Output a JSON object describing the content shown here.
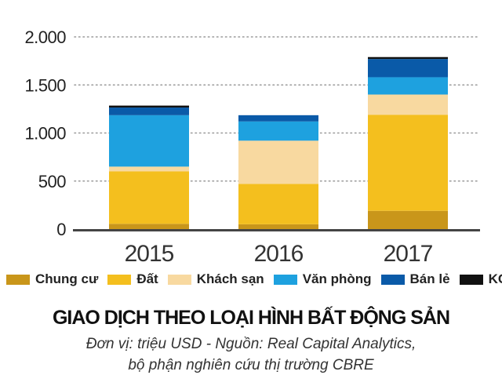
{
  "chart_data": {
    "type": "bar",
    "stacked": true,
    "title": "GIAO DỊCH THEO LOẠI HÌNH BẤT ĐỘNG SẢN",
    "subtitle_line1": "Đơn vị: triệu USD - Nguồn: Real Capital Analytics,",
    "subtitle_line2": "bộ phận nghiên cứu thị trường CBRE",
    "categories": [
      "2015",
      "2016",
      "2017"
    ],
    "ylim": [
      0,
      2000
    ],
    "yticks": [
      0,
      500,
      1000,
      1500,
      2000
    ],
    "ytick_labels": [
      "0",
      "500",
      "1.000",
      "1.500",
      "2.000"
    ],
    "grid": true,
    "legend_position": "bottom",
    "series": [
      {
        "name": "Chung cư",
        "color": "#C9961A",
        "values": [
          55,
          50,
          190
        ]
      },
      {
        "name": "Đất",
        "color": "#F4BF1E",
        "values": [
          545,
          420,
          1000
        ]
      },
      {
        "name": "Khách sạn",
        "color": "#F8D9A0",
        "values": [
          50,
          450,
          210
        ]
      },
      {
        "name": "Văn phòng",
        "color": "#1EA1DF",
        "values": [
          535,
          200,
          180
        ]
      },
      {
        "name": "Bán lẻ",
        "color": "#0A5AA8",
        "values": [
          80,
          65,
          190
        ]
      },
      {
        "name": "KCN",
        "color": "#111111",
        "values": [
          20,
          0,
          20
        ]
      }
    ]
  }
}
